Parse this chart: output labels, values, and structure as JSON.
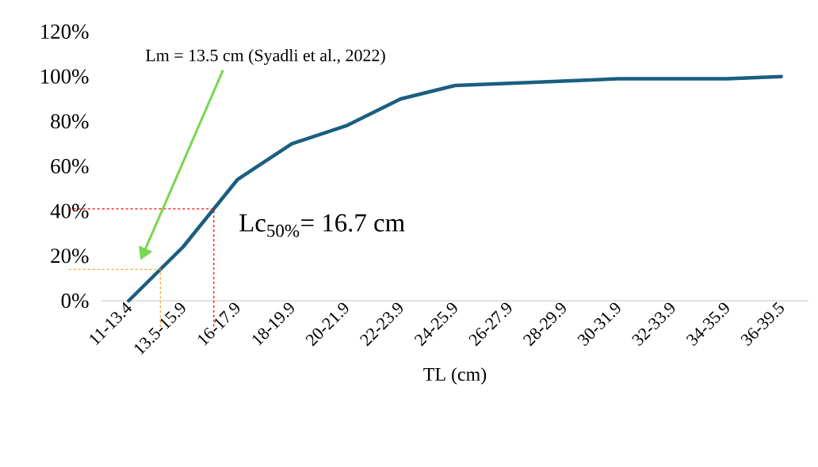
{
  "chart_data": {
    "type": "line",
    "xlabel": "TL (cm)",
    "categories": [
      "11-13.4",
      "13.5-15.9",
      "16-17.9",
      "18-19.9",
      "20-21.9",
      "22-23.9",
      "24-25.9",
      "26-27.9",
      "28-29.9",
      "30-31.9",
      "32-33.9",
      "34-35.9",
      "36-39.5"
    ],
    "series": [
      {
        "color": "#1b5e80",
        "values": [
          0,
          24,
          54,
          70,
          78,
          90,
          96,
          97,
          98,
          99,
          99,
          99,
          100
        ]
      }
    ],
    "ylim": [
      0,
      120
    ],
    "yticks": [
      {
        "value": 0,
        "label": "0%"
      },
      {
        "value": 20,
        "label": "20%"
      },
      {
        "value": 40,
        "label": "40%"
      },
      {
        "value": 60,
        "label": "60%"
      },
      {
        "value": 80,
        "label": "80%"
      },
      {
        "value": 100,
        "label": "100%"
      },
      {
        "value": 120,
        "label": "120%"
      }
    ],
    "grid": false,
    "annotations": [
      "Lm = 13.5 cm (Syadli et al., 2022)",
      "Lc$_{50%}$= 16.7 cm"
    ],
    "ref_lines": [
      {
        "axis": "y",
        "value": 41,
        "color": "#ff0000",
        "line_style": "dashed"
      },
      {
        "axis": "y",
        "value": 14,
        "color": "#f5a623",
        "line_style": "dashed"
      }
    ]
  }
}
